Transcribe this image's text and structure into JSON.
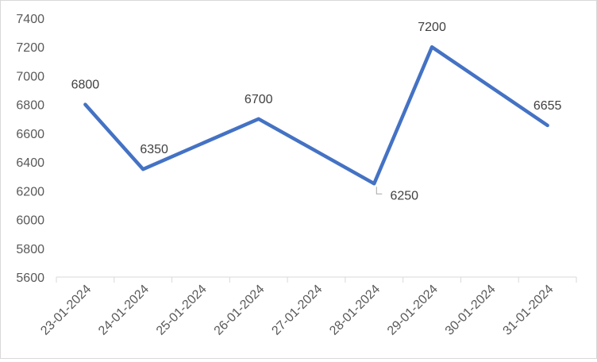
{
  "chart_data": {
    "type": "line",
    "title": "",
    "xlabel": "",
    "ylabel": "",
    "x": [
      "23-01-2024",
      "24-01-2024",
      "25-01-2024",
      "26-01-2024",
      "27-01-2024",
      "28-01-2024",
      "29-01-2024",
      "30-01-2024",
      "31-01-2024"
    ],
    "y_ticks": [
      "5600",
      "5800",
      "6000",
      "6200",
      "6400",
      "6600",
      "6800",
      "7000",
      "7200",
      "7400"
    ],
    "ylim": [
      5600,
      7400
    ],
    "grid": false,
    "legend": "none",
    "series": [
      {
        "color": "#4472c4",
        "points": [
          {
            "x": "23-01-2024",
            "y": 6800,
            "label": "6800"
          },
          {
            "x": "24-01-2024",
            "y": 6350,
            "label": "6350"
          },
          {
            "x": "26-01-2024",
            "y": 6700,
            "label": "6700"
          },
          {
            "x": "28-01-2024",
            "y": 6250,
            "label": "6250"
          },
          {
            "x": "29-01-2024",
            "y": 7200,
            "label": "7200"
          },
          {
            "x": "31-01-2024",
            "y": 6655,
            "label": "6655"
          }
        ]
      }
    ],
    "axis_color": "#d9d9d9",
    "leader_line_color": "#a6a6a6"
  }
}
